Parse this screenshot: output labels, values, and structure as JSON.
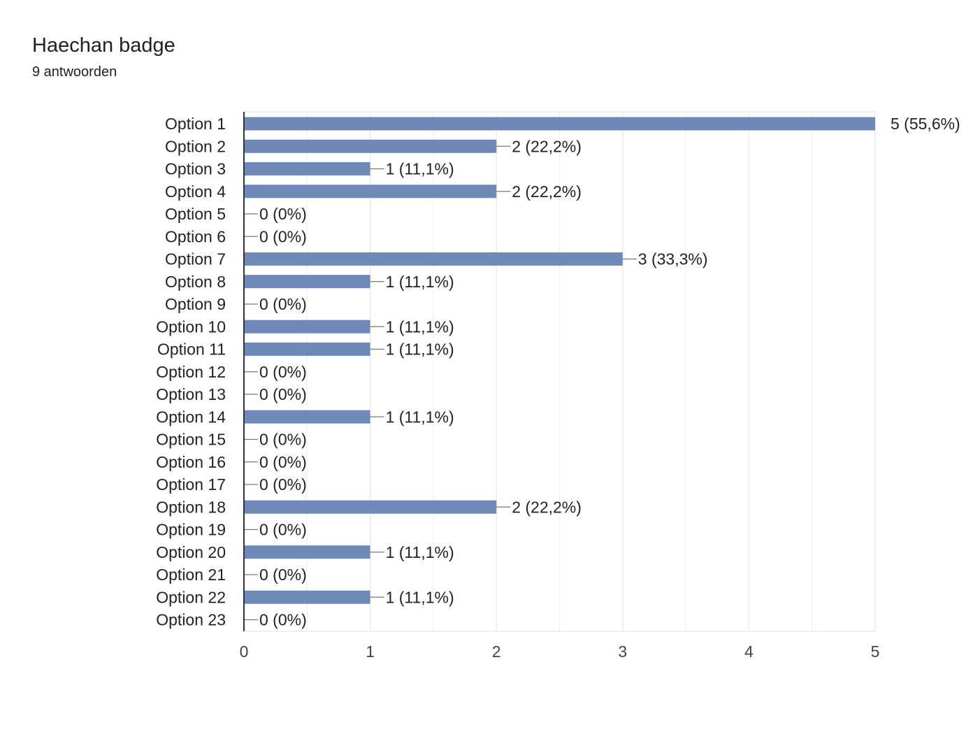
{
  "header": {
    "title": "Haechan badge",
    "subtitle": "9 antwoorden"
  },
  "colors": {
    "bar": "#6f89b9",
    "grid": "#ececec",
    "axis": "#333333",
    "leader": "#777777"
  },
  "chart_data": {
    "type": "bar",
    "orientation": "horizontal",
    "title": "Haechan badge",
    "subtitle": "9 antwoorden",
    "categories": [
      "Option 1",
      "Option 2",
      "Option 3",
      "Option 4",
      "Option 5",
      "Option 6",
      "Option 7",
      "Option 8",
      "Option 9",
      "Option 10",
      "Option 11",
      "Option 12",
      "Option 13",
      "Option 14",
      "Option 15",
      "Option 16",
      "Option 17",
      "Option 18",
      "Option 19",
      "Option 20",
      "Option 21",
      "Option 22",
      "Option 23"
    ],
    "values": [
      5,
      2,
      1,
      2,
      0,
      0,
      3,
      1,
      0,
      1,
      1,
      0,
      0,
      1,
      0,
      0,
      0,
      2,
      0,
      1,
      0,
      1,
      0
    ],
    "labels": [
      "5 (55,6%)",
      "2 (22,2%)",
      "1 (11,1%)",
      "2 (22,2%)",
      "0 (0%)",
      "0 (0%)",
      "3 (33,3%)",
      "1 (11,1%)",
      "0 (0%)",
      "1 (11,1%)",
      "1 (11,1%)",
      "0 (0%)",
      "0 (0%)",
      "1 (11,1%)",
      "0 (0%)",
      "0 (0%)",
      "0 (0%)",
      "2 (22,2%)",
      "0 (0%)",
      "1 (11,1%)",
      "0 (0%)",
      "1 (11,1%)",
      "0 (0%)"
    ],
    "xticks": [
      "0",
      "1",
      "2",
      "3",
      "4",
      "5"
    ],
    "xlim": [
      0,
      5
    ],
    "xlabel": "",
    "ylabel": "",
    "grid": true,
    "legend": "none"
  }
}
